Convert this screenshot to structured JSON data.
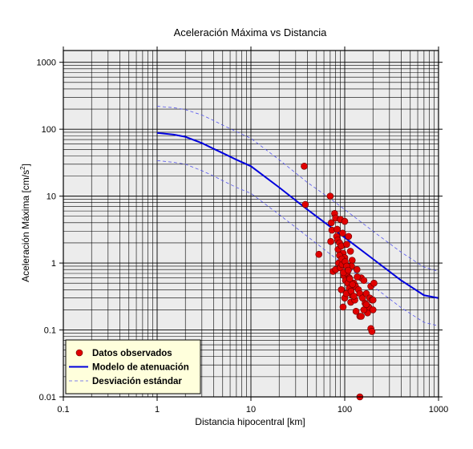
{
  "chart_data": {
    "type": "scatter",
    "title": "Aceleración Máxima vs Distancia",
    "xlabel": "Distancia hipocentral [km]",
    "ylabel": "Aceleración Máxima [cm/s",
    "ylabel_sup": "2",
    "ylabel_close": "]",
    "x_scale": "log",
    "y_scale": "log",
    "xlim": [
      0.1,
      1000
    ],
    "ylim": [
      0.01,
      1500
    ],
    "x_tick_values": [
      0.1,
      1,
      10,
      100,
      1000
    ],
    "x_tick_labels": [
      "0.1",
      "1",
      "10",
      "100",
      "1000"
    ],
    "y_tick_values": [
      0.01,
      0.1,
      1,
      10,
      100,
      1000
    ],
    "y_tick_labels": [
      "0.01",
      "0.1",
      "1",
      "10",
      "100",
      "1000"
    ],
    "grid": true,
    "legend_position": "bottom-left",
    "legend": [
      {
        "label": "Datos observados",
        "marker": "circle",
        "color": "#e00000"
      },
      {
        "label": "Modelo de atenuación",
        "marker": "line",
        "color": "#0000dd"
      },
      {
        "label": "Desviación estándar",
        "marker": "dashed",
        "color": "#5555ee"
      }
    ],
    "colors": {
      "points": "#e00000",
      "model": "#0000dd",
      "std": "#5555ee",
      "plot_bg": "#ececec",
      "legend_bg": "#ffffdc"
    },
    "series": [
      {
        "name": "Modelo de atenuación",
        "kind": "line",
        "x": [
          1,
          1.5,
          2,
          3,
          4,
          5,
          7,
          10,
          20,
          40,
          70,
          100,
          200,
          400,
          700,
          1000
        ],
        "y": [
          88,
          83,
          77,
          62,
          51,
          44,
          35,
          28,
          13.5,
          6.3,
          3.5,
          2.4,
          1.15,
          0.55,
          0.33,
          0.3
        ]
      },
      {
        "name": "Desviación estándar",
        "kind": "dashed",
        "x": [
          1,
          1.5,
          2,
          3,
          4,
          5,
          7,
          10,
          20,
          40,
          70,
          100,
          200,
          400,
          700,
          1000
        ],
        "y": [
          220,
          210,
          196,
          163,
          135,
          115,
          92,
          73,
          35,
          16,
          9.2,
          6.3,
          3,
          1.45,
          0.87,
          0.75
        ]
      },
      {
        "name": "Desviación estándar",
        "kind": "dashed",
        "x": [
          1,
          1.5,
          2,
          3,
          4,
          5,
          7,
          10,
          20,
          40,
          70,
          100,
          200,
          400,
          700,
          1000
        ],
        "y": [
          34,
          32,
          30,
          24,
          20,
          17,
          13.5,
          11,
          5.3,
          2.5,
          1.36,
          0.93,
          0.45,
          0.215,
          0.13,
          0.115
        ]
      },
      {
        "name": "Datos observados",
        "kind": "points",
        "x": [
          37,
          38,
          53,
          70,
          73,
          72,
          71,
          78,
          80,
          82,
          84,
          83,
          90,
          95,
          100,
          75,
          80,
          85,
          88,
          92,
          96,
          100,
          105,
          110,
          115,
          120,
          86,
          90,
          94,
          98,
          102,
          106,
          112,
          118,
          125,
          130,
          135,
          140,
          145,
          150,
          155,
          160,
          165,
          170,
          175,
          180,
          185,
          190,
          195,
          200,
          205,
          92,
          96,
          100,
          104,
          108,
          112,
          116,
          120,
          128,
          132,
          136,
          88,
          93,
          97,
          101,
          105,
          109,
          113,
          117,
          121,
          125,
          145,
          150,
          160,
          170,
          190,
          195,
          200,
          145
        ],
        "y": [
          28,
          7.5,
          1.35,
          10,
          3.1,
          4,
          2.1,
          5.5,
          4.7,
          2.5,
          2.2,
          3.2,
          4.5,
          2.8,
          4.2,
          0.75,
          0.8,
          1.6,
          2.0,
          1.8,
          1.4,
          1.2,
          1.9,
          2.5,
          1.5,
          1.1,
          1.0,
          0.85,
          0.95,
          0.65,
          0.55,
          0.7,
          0.6,
          0.9,
          0.5,
          0.45,
          0.8,
          0.4,
          0.35,
          0.6,
          0.3,
          0.55,
          0.25,
          0.35,
          0.18,
          0.22,
          0.3,
          0.45,
          0.28,
          0.2,
          0.5,
          0.4,
          0.22,
          0.3,
          0.35,
          0.5,
          0.42,
          0.26,
          0.33,
          0.28,
          0.19,
          0.62,
          1.3,
          1.15,
          0.72,
          1.05,
          0.9,
          0.78,
          0.58,
          0.38,
          0.48,
          0.32,
          0.16,
          0.16,
          0.2,
          0.24,
          0.105,
          0.095,
          0.28,
          0.01
        ]
      }
    ]
  }
}
